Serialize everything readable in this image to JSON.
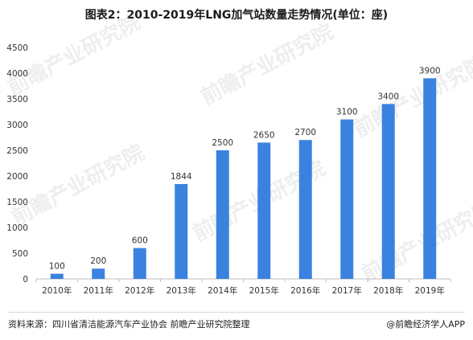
{
  "title": "图表2：2010-2019年LNG加气站数量走势情况(单位：座)",
  "source": "资料来源：四川省清洁能源汽车产业协会 前瞻产业研究院整理",
  "brand": "@前瞻经济学人APP",
  "watermark": "前瞻产业研究院",
  "colors": {
    "bar": "#3b82e0",
    "axis": "#bfbfbf",
    "text": "#333333"
  },
  "chart_data": {
    "type": "bar",
    "title": "图表2：2010-2019年LNG加气站数量走势情况(单位：座)",
    "categories": [
      "2010年",
      "2011年",
      "2012年",
      "2013年",
      "2014年",
      "2015年",
      "2016年",
      "2017年",
      "2018年",
      "2019年"
    ],
    "values": [
      100,
      200,
      600,
      1844,
      2500,
      2650,
      2700,
      3100,
      3400,
      3900
    ],
    "yticks": [
      0,
      500,
      1000,
      1500,
      2000,
      2500,
      3000,
      3500,
      4000,
      4500
    ],
    "ylim": [
      0,
      4500
    ],
    "grid": false,
    "xlabel": "",
    "ylabel": ""
  }
}
